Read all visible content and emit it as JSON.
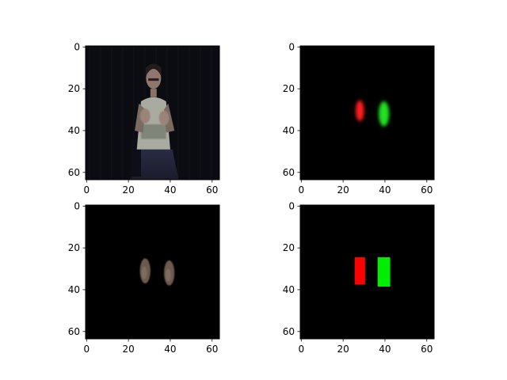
{
  "chart_data": [
    {
      "type": "image",
      "panel": "top-left",
      "xlim": [
        0,
        63
      ],
      "ylim": [
        63,
        0
      ],
      "xticks": [
        "0",
        "20",
        "40",
        "60"
      ],
      "yticks": [
        "0",
        "20",
        "40",
        "60"
      ],
      "content": "dark photo of a person seated, hands raised in front of chest",
      "background_color": "#0b0b12"
    },
    {
      "type": "heatmap",
      "panel": "top-right",
      "xlim": [
        0,
        63
      ],
      "ylim": [
        63,
        0
      ],
      "xticks": [
        "0",
        "20",
        "40",
        "60"
      ],
      "yticks": [
        "0",
        "20",
        "40",
        "60"
      ],
      "blobs": [
        {
          "color": "#ff1a1a",
          "x_center": 28,
          "y_center": 30.5,
          "width": 4,
          "height": 10
        },
        {
          "color": "#22e022",
          "x_center": 39.5,
          "y_center": 32,
          "width": 5,
          "height": 12
        }
      ],
      "background_color": "#000000"
    },
    {
      "type": "image",
      "panel": "bottom-left",
      "xlim": [
        0,
        63
      ],
      "ylim": [
        63,
        0
      ],
      "xticks": [
        "0",
        "20",
        "40",
        "60"
      ],
      "yticks": [
        "0",
        "20",
        "40",
        "60"
      ],
      "content": "masked image showing only the two hand regions",
      "regions": [
        {
          "x_center": 28,
          "y_center": 31,
          "width": 5,
          "height": 12
        },
        {
          "x_center": 39.5,
          "y_center": 32,
          "width": 5,
          "height": 12
        }
      ],
      "background_color": "#000000"
    },
    {
      "type": "heatmap",
      "panel": "bottom-right",
      "xlim": [
        0,
        63
      ],
      "ylim": [
        63,
        0
      ],
      "xticks": [
        "0",
        "20",
        "40",
        "60"
      ],
      "yticks": [
        "0",
        "20",
        "40",
        "60"
      ],
      "boxes": [
        {
          "color": "#ff0000",
          "x0": 26,
          "x1": 30,
          "y0": 25,
          "y1": 37
        },
        {
          "color": "#00ee00",
          "x0": 37,
          "x1": 42,
          "y0": 25,
          "y1": 38
        }
      ],
      "background_color": "#000000"
    }
  ]
}
